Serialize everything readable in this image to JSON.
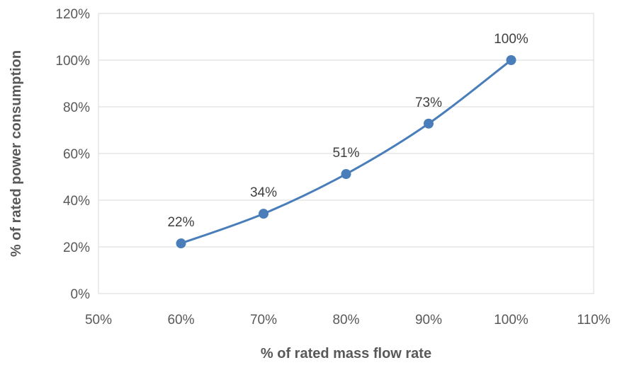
{
  "chart_data": {
    "type": "line",
    "title": "",
    "xlabel": "% of rated mass flow rate",
    "ylabel": "% of rated power consumption",
    "xlim": [
      50,
      110
    ],
    "ylim": [
      0,
      120
    ],
    "x_ticks": [
      50,
      60,
      70,
      80,
      90,
      100,
      110
    ],
    "x_tick_labels": [
      "50%",
      "60%",
      "70%",
      "80%",
      "90%",
      "100%",
      "110%"
    ],
    "y_ticks": [
      0,
      20,
      40,
      60,
      80,
      100,
      120
    ],
    "y_tick_labels": [
      "0%",
      "20%",
      "40%",
      "60%",
      "80%",
      "100%",
      "120%"
    ],
    "grid": true,
    "legend": "none",
    "smooth": true,
    "series": [
      {
        "color": "#4a7ebb",
        "x": [
          60,
          70,
          80,
          90,
          100
        ],
        "y": [
          21.5,
          34.2,
          51.2,
          72.8,
          100
        ],
        "labels": [
          "22%",
          "34%",
          "51%",
          "73%",
          "100%"
        ]
      }
    ]
  }
}
